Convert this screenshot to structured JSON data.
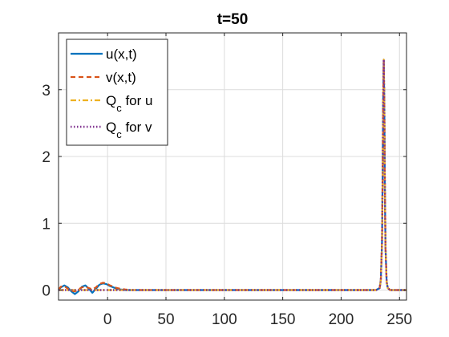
{
  "chart_data": {
    "type": "line",
    "title": "t=50",
    "xlabel": "",
    "ylabel": "",
    "xlim": [
      -42,
      256
    ],
    "ylim": [
      -0.15,
      3.85
    ],
    "xticks": [
      0,
      50,
      100,
      150,
      200,
      250
    ],
    "yticks": [
      0,
      1,
      2,
      3
    ],
    "grid": true,
    "legend_position": "top-left",
    "series": [
      {
        "name": "u(x,t)",
        "color": "#0072BD",
        "style": "solid",
        "x": [
          -42,
          -40,
          -37,
          -34,
          -31,
          -28,
          -25,
          -22,
          -19,
          -16,
          -13,
          -10,
          -7,
          -4,
          -1,
          2,
          5,
          8,
          11,
          15,
          20,
          30,
          60,
          100,
          150,
          200,
          230,
          233,
          234,
          235,
          235.5,
          236,
          236.5,
          237,
          237.5,
          238,
          239,
          240,
          242,
          250,
          256
        ],
        "y": [
          0.0,
          0.04,
          0.07,
          0.04,
          -0.02,
          -0.06,
          -0.02,
          0.05,
          0.07,
          0.02,
          -0.04,
          0.02,
          0.08,
          0.1,
          0.09,
          0.06,
          0.04,
          0.02,
          0.01,
          0.0,
          0.0,
          0.0,
          0.0,
          0.0,
          0.0,
          0.0,
          0.0,
          0.03,
          0.15,
          0.7,
          1.6,
          2.8,
          3.45,
          2.8,
          1.5,
          0.65,
          0.12,
          0.03,
          0.0,
          0.0,
          0.0
        ]
      },
      {
        "name": "v(x,t)",
        "color": "#D95319",
        "style": "dashed",
        "x": [
          -42,
          -40,
          -37,
          -34,
          -31,
          -28,
          -25,
          -22,
          -19,
          -16,
          -13,
          -10,
          -7,
          -4,
          -1,
          2,
          5,
          8,
          11,
          15,
          20,
          30,
          60,
          100,
          150,
          200,
          230,
          233,
          234,
          235,
          235.5,
          236,
          236.5,
          237,
          237.5,
          238,
          239,
          240,
          242,
          250,
          256
        ],
        "y": [
          0.01,
          0.05,
          0.06,
          0.02,
          -0.01,
          -0.02,
          0.01,
          0.04,
          0.05,
          0.03,
          0.01,
          0.04,
          0.09,
          0.11,
          0.1,
          0.07,
          0.05,
          0.03,
          0.02,
          0.01,
          0.0,
          0.0,
          0.0,
          0.0,
          0.0,
          0.0,
          0.0,
          0.03,
          0.15,
          0.7,
          1.6,
          2.8,
          3.45,
          2.8,
          1.5,
          0.65,
          0.12,
          0.03,
          0.0,
          0.0,
          0.0
        ]
      },
      {
        "name": "Q_c for u",
        "color": "#EDB120",
        "style": "dashdot",
        "x": [
          -42,
          20,
          100,
          200,
          230,
          233,
          234,
          235,
          235.5,
          236,
          236.5,
          237,
          237.5,
          238,
          239,
          240,
          242,
          256
        ],
        "y": [
          0.0,
          0.0,
          0.0,
          0.0,
          0.0,
          0.03,
          0.15,
          0.7,
          1.6,
          2.8,
          3.45,
          2.8,
          1.5,
          0.65,
          0.12,
          0.03,
          0.0,
          0.0
        ]
      },
      {
        "name": "Q_c for v",
        "color": "#7E2F8E",
        "style": "dotted",
        "x": [
          -42,
          20,
          100,
          200,
          230,
          233,
          234,
          235,
          235.5,
          236,
          236.5,
          237,
          237.5,
          238,
          239,
          240,
          242,
          256
        ],
        "y": [
          0.0,
          0.0,
          0.0,
          0.0,
          0.0,
          0.03,
          0.15,
          0.7,
          1.6,
          2.8,
          3.45,
          2.8,
          1.5,
          0.65,
          0.12,
          0.03,
          0.0,
          0.0
        ]
      }
    ]
  }
}
